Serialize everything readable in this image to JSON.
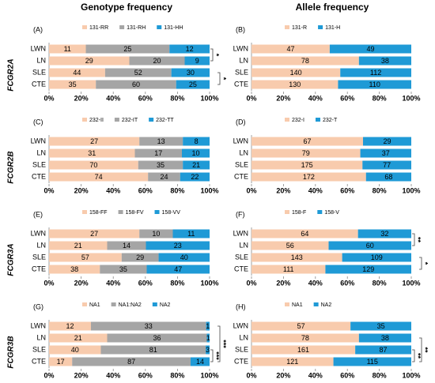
{
  "column_titles": [
    "Genotype frequency",
    "Allele frequency"
  ],
  "row_labels": [
    "FCGR2A",
    "FCGR2B",
    "FCGR3A",
    "FCGR3B"
  ],
  "chart_data": [
    {
      "type": "bar",
      "orientation": "horizontal",
      "stacking": "percent",
      "panel": "(A)",
      "categories": [
        "LWN",
        "LN",
        "SLE",
        "CTE"
      ],
      "series": [
        {
          "name": "131-RR",
          "color": "#f8cbad",
          "values": [
            11,
            29,
            44,
            35
          ]
        },
        {
          "name": "131-RH",
          "color": "#a5a5a5",
          "values": [
            25,
            20,
            52,
            60
          ]
        },
        {
          "name": "131-HH",
          "color": "#1f9ad6",
          "values": [
            12,
            9,
            30,
            25
          ]
        }
      ],
      "xlim": [
        0,
        100
      ],
      "xticks": [
        {
          "value": 0,
          "label": "0%"
        },
        {
          "value": 20,
          "label": "20%"
        },
        {
          "value": 40,
          "label": "40%"
        },
        {
          "value": 60,
          "label": "60%"
        },
        {
          "value": 80,
          "label": "80%"
        },
        {
          "value": 100,
          "label": "100%"
        }
      ],
      "annotations": [
        {
          "text": "*",
          "from": "LWN",
          "to": "LN"
        },
        {
          "text": "*",
          "from": "SLE",
          "to": "CTE"
        }
      ]
    },
    {
      "type": "bar",
      "orientation": "horizontal",
      "stacking": "percent",
      "panel": "(B)",
      "categories": [
        "LWN",
        "LN",
        "SLE",
        "CTE"
      ],
      "series": [
        {
          "name": "131-R",
          "color": "#f8cbad",
          "values": [
            47,
            78,
            140,
            130
          ]
        },
        {
          "name": "131-H",
          "color": "#1f9ad6",
          "values": [
            49,
            38,
            112,
            110
          ]
        }
      ],
      "xlim": [
        0,
        100
      ],
      "xticks": [
        {
          "value": 0,
          "label": "0%"
        },
        {
          "value": 20,
          "label": "20%"
        },
        {
          "value": 40,
          "label": "40%"
        },
        {
          "value": 60,
          "label": "60%"
        },
        {
          "value": 80,
          "label": "80%"
        },
        {
          "value": 100,
          "label": "100%"
        }
      ],
      "annotations": []
    },
    {
      "type": "bar",
      "orientation": "horizontal",
      "stacking": "percent",
      "panel": "(C)",
      "categories": [
        "LWN",
        "LN",
        "SLE",
        "CTE"
      ],
      "series": [
        {
          "name": "232-II",
          "color": "#f8cbad",
          "values": [
            27,
            31,
            70,
            74
          ]
        },
        {
          "name": "232-IT",
          "color": "#a5a5a5",
          "values": [
            13,
            17,
            35,
            24
          ]
        },
        {
          "name": "232-TT",
          "color": "#1f9ad6",
          "values": [
            8,
            10,
            21,
            22
          ]
        }
      ],
      "xlim": [
        0,
        100
      ],
      "xticks": [
        {
          "value": 0,
          "label": "0%"
        },
        {
          "value": 20,
          "label": "20%"
        },
        {
          "value": 40,
          "label": "40%"
        },
        {
          "value": 60,
          "label": "60%"
        },
        {
          "value": 80,
          "label": "80%"
        },
        {
          "value": 100,
          "label": "100%"
        }
      ],
      "annotations": []
    },
    {
      "type": "bar",
      "orientation": "horizontal",
      "stacking": "percent",
      "panel": "(D)",
      "categories": [
        "LWN",
        "LN",
        "SLE",
        "CTE"
      ],
      "series": [
        {
          "name": "232-I",
          "color": "#f8cbad",
          "values": [
            67,
            79,
            175,
            172
          ]
        },
        {
          "name": "232-T",
          "color": "#1f9ad6",
          "values": [
            29,
            37,
            77,
            68
          ]
        }
      ],
      "xlim": [
        0,
        100
      ],
      "xticks": [
        {
          "value": 0,
          "label": "0%"
        },
        {
          "value": 20,
          "label": "20%"
        },
        {
          "value": 40,
          "label": "40%"
        },
        {
          "value": 60,
          "label": "60%"
        },
        {
          "value": 80,
          "label": "80%"
        },
        {
          "value": 100,
          "label": "100%"
        }
      ],
      "annotations": []
    },
    {
      "type": "bar",
      "orientation": "horizontal",
      "stacking": "percent",
      "panel": "(E)",
      "categories": [
        "LWN",
        "LN",
        "SLE",
        "CTE"
      ],
      "series": [
        {
          "name": "158-FF",
          "color": "#f8cbad",
          "values": [
            27,
            21,
            57,
            38
          ]
        },
        {
          "name": "158-FV",
          "color": "#a5a5a5",
          "values": [
            10,
            14,
            29,
            35
          ]
        },
        {
          "name": "158-VV",
          "color": "#1f9ad6",
          "values": [
            11,
            23,
            40,
            47
          ]
        }
      ],
      "xlim": [
        0,
        100
      ],
      "xticks": [
        {
          "value": 0,
          "label": "0%"
        },
        {
          "value": 20,
          "label": "20%"
        },
        {
          "value": 40,
          "label": "40%"
        },
        {
          "value": 60,
          "label": "60%"
        },
        {
          "value": 80,
          "label": "80%"
        },
        {
          "value": 100,
          "label": "100%"
        }
      ],
      "annotations": []
    },
    {
      "type": "bar",
      "orientation": "horizontal",
      "stacking": "percent",
      "panel": "(F)",
      "categories": [
        "LWN",
        "LN",
        "SLE",
        "CTE"
      ],
      "series": [
        {
          "name": "158-F",
          "color": "#f8cbad",
          "values": [
            64,
            56,
            143,
            111
          ]
        },
        {
          "name": "158-V",
          "color": "#1f9ad6",
          "values": [
            32,
            60,
            109,
            129
          ]
        }
      ],
      "xlim": [
        0,
        100
      ],
      "xticks": [
        {
          "value": 0,
          "label": "0%"
        },
        {
          "value": 20,
          "label": "20%"
        },
        {
          "value": 40,
          "label": "40%"
        },
        {
          "value": 60,
          "label": "60%"
        },
        {
          "value": 80,
          "label": "80%"
        },
        {
          "value": 100,
          "label": "100%"
        }
      ],
      "annotations": [
        {
          "text": "**",
          "from": "LWN",
          "to": "LN"
        },
        {
          "text": "*",
          "from": "SLE",
          "to": "CTE"
        }
      ]
    },
    {
      "type": "bar",
      "orientation": "horizontal",
      "stacking": "percent",
      "panel": "(G)",
      "categories": [
        "LWN",
        "LN",
        "SLE",
        "CTE"
      ],
      "series": [
        {
          "name": "NA1",
          "color": "#f8cbad",
          "values": [
            12,
            21,
            40,
            17
          ]
        },
        {
          "name": "NA1:NA2",
          "color": "#a5a5a5",
          "values": [
            33,
            36,
            81,
            87
          ]
        },
        {
          "name": "NA2",
          "color": "#1f9ad6",
          "values": [
            1,
            1,
            3,
            14
          ]
        }
      ],
      "xlim": [
        0,
        100
      ],
      "xticks": [
        {
          "value": 0,
          "label": "0%"
        },
        {
          "value": 20,
          "label": "20%"
        },
        {
          "value": 40,
          "label": "40%"
        },
        {
          "value": 60,
          "label": "60%"
        },
        {
          "value": 80,
          "label": "80%"
        },
        {
          "value": 100,
          "label": "100%"
        }
      ],
      "annotations": [
        {
          "text": "***",
          "from": "SLE",
          "to": "CTE"
        },
        {
          "text": "***",
          "from": "LWN",
          "to": "CTE"
        }
      ]
    },
    {
      "type": "bar",
      "orientation": "horizontal",
      "stacking": "percent",
      "panel": "(H)",
      "categories": [
        "LWN",
        "LN",
        "SLE",
        "CTE"
      ],
      "series": [
        {
          "name": "NA1",
          "color": "#f8cbad",
          "values": [
            57,
            78,
            161,
            121
          ]
        },
        {
          "name": "NA2",
          "color": "#1f9ad6",
          "values": [
            35,
            38,
            87,
            115
          ]
        }
      ],
      "xlim": [
        0,
        100
      ],
      "xticks": [
        {
          "value": 0,
          "label": "0%"
        },
        {
          "value": 20,
          "label": "20%"
        },
        {
          "value": 40,
          "label": "40%"
        },
        {
          "value": 60,
          "label": "60%"
        },
        {
          "value": 80,
          "label": "80%"
        },
        {
          "value": 100,
          "label": "100%"
        }
      ],
      "annotations": [
        {
          "text": "**",
          "from": "SLE",
          "to": "CTE"
        },
        {
          "text": "**",
          "from": "LN",
          "to": "CTE"
        }
      ]
    }
  ]
}
